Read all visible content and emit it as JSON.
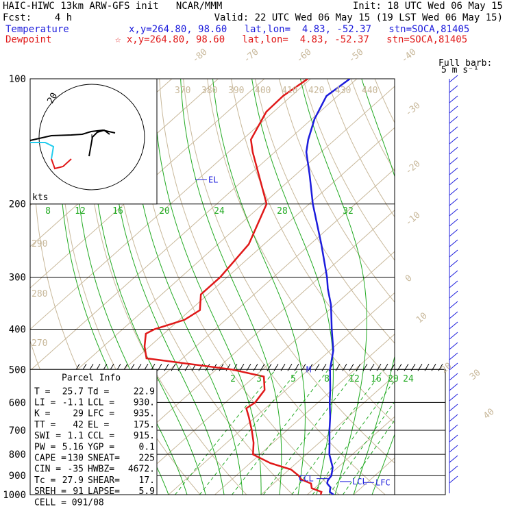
{
  "header": {
    "line1_left": "HAIC-HIWC 13km ARW-GFS init   NCAR/MMM",
    "line1_right": "Init: 18 UTC Wed 06 May 15",
    "line2_left": "Fcst:    4 h",
    "line2_right": "Valid: 22 UTC Wed 06 May 15 (19 LST Wed 06 May 15)",
    "temp_label": "Temperature",
    "temp_info": "x,y=264.80, 98.60   lat,lon=  4.83, -52.37   stn=SOCA,81405",
    "dew_label": "Dewpoint",
    "dew_info": "☆ x,y=264.80, 98.60   lat,lon=  4.83, -52.37   stn=SOCA,81405"
  },
  "barb_title": "Full barb:",
  "barb_unit": "5 m s⁻¹",
  "hodo_unit": "kts",
  "hodo_ring": "20",
  "levels": [
    "EL",
    "CCL",
    "LCL",
    "LFC",
    "M"
  ],
  "parcel": {
    "title": "Parcel Info",
    "rows": [
      [
        "T  =",
        "25.7",
        "Td =",
        "22.9"
      ],
      [
        "LI =",
        "-1.1",
        "LCL =",
        "930."
      ],
      [
        "K  =",
        "29",
        "LFC =",
        "935."
      ],
      [
        "TT =",
        "42",
        "EL  =",
        "175."
      ],
      [
        "SWI =",
        "1.1",
        "CCL =",
        "915."
      ],
      [
        "PW =",
        "5.16",
        "YGP =",
        "0.1"
      ],
      [
        "CAPE =",
        "130",
        "SNEAT=",
        "225"
      ],
      [
        "CIN =",
        "-35",
        "HWBZ=",
        "4672."
      ],
      [
        "Tc =",
        "27.9",
        "SHEAR=",
        "17."
      ],
      [
        "SREH =",
        "91",
        "LAPSE=",
        "5.9"
      ]
    ],
    "cell": "CELL = 091/08"
  },
  "chart_data": {
    "type": "line",
    "pressure_levels": [
      100,
      200,
      300,
      400,
      500,
      600,
      700,
      800,
      900,
      1000
    ],
    "isotherm_labels": [
      "-80",
      "-70",
      "-60",
      "-50",
      "-40",
      "-30",
      "-20",
      "-10",
      "0",
      "10",
      "20",
      "30",
      "40"
    ],
    "theta_labels": [
      "370",
      "380",
      "390",
      "400",
      "410",
      "420",
      "430",
      "440"
    ],
    "theta_left_labels": [
      "290",
      "280",
      "270"
    ],
    "mixing_upper": [
      "8",
      "12",
      "16",
      "20",
      "24",
      "28",
      "32"
    ],
    "mixing_lower": [
      "2",
      "3",
      "5",
      "8",
      "12",
      "16",
      "20",
      "24"
    ],
    "series": [
      {
        "name": "Temperature",
        "color": "#1c1cdc",
        "p": [
          1000,
          985,
          960,
          940,
          925,
          900,
          860,
          800,
          760,
          700,
          650,
          600,
          560,
          500,
          450,
          400,
          350,
          320,
          300,
          250,
          200,
          170,
          150,
          140,
          125,
          110,
          100
        ],
        "t": [
          25.7,
          24.2,
          23.2,
          21.6,
          21.0,
          20.6,
          18.9,
          15.0,
          12.8,
          9.2,
          6.1,
          2.5,
          -0.4,
          -5.4,
          -9.3,
          -14.8,
          -20.8,
          -25.4,
          -28.4,
          -37.6,
          -49.2,
          -57.0,
          -63.2,
          -65.8,
          -69.4,
          -72.4,
          -71.5
        ]
      },
      {
        "name": "Dewpoint",
        "color": "#e01818",
        "p": [
          1000,
          985,
          965,
          940,
          920,
          900,
          870,
          840,
          800,
          750,
          700,
          650,
          620,
          600,
          560,
          520,
          500,
          470,
          440,
          410,
          400,
          380,
          360,
          330,
          300,
          250,
          200,
          150,
          140,
          120,
          110,
          100
        ],
        "t": [
          22.9,
          22.4,
          19.4,
          18.1,
          15.1,
          13.5,
          10.4,
          4.4,
          -1.5,
          -4.2,
          -7.6,
          -11.5,
          -14.1,
          -13.6,
          -14.6,
          -18.0,
          -26.6,
          -47.8,
          -51.1,
          -53.9,
          -53.1,
          -48.9,
          -47.9,
          -51.5,
          -51.5,
          -53.3,
          -59.2,
          -74.8,
          -78.2,
          -81.6,
          -81.8,
          -80.6
        ]
      }
    ],
    "hodograph": {
      "unit": "kts",
      "ring_label": "20"
    }
  }
}
